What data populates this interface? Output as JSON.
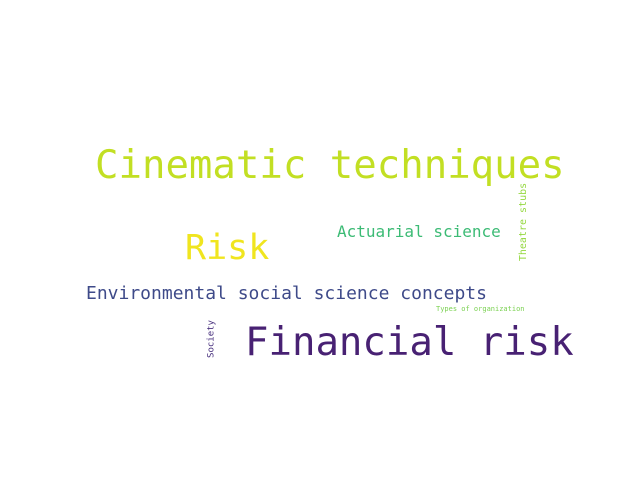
{
  "word_cloud": {
    "words": [
      {
        "text": "Cinematic techniques",
        "color": "#c2df23",
        "orientation": "horizontal"
      },
      {
        "text": "Risk",
        "color": "#f0e51f",
        "orientation": "horizontal"
      },
      {
        "text": "Actuarial science",
        "color": "#3cbb75",
        "orientation": "horizontal"
      },
      {
        "text": "Theatre stubs",
        "color": "#95d840",
        "orientation": "vertical"
      },
      {
        "text": "Environmental social science concepts",
        "color": "#3e4a89",
        "orientation": "horizontal"
      },
      {
        "text": "Types of organization",
        "color": "#7ad151",
        "orientation": "horizontal"
      },
      {
        "text": "Society",
        "color": "#472f7d",
        "orientation": "vertical"
      },
      {
        "text": "Financial risk",
        "color": "#482173",
        "orientation": "horizontal"
      }
    ]
  }
}
